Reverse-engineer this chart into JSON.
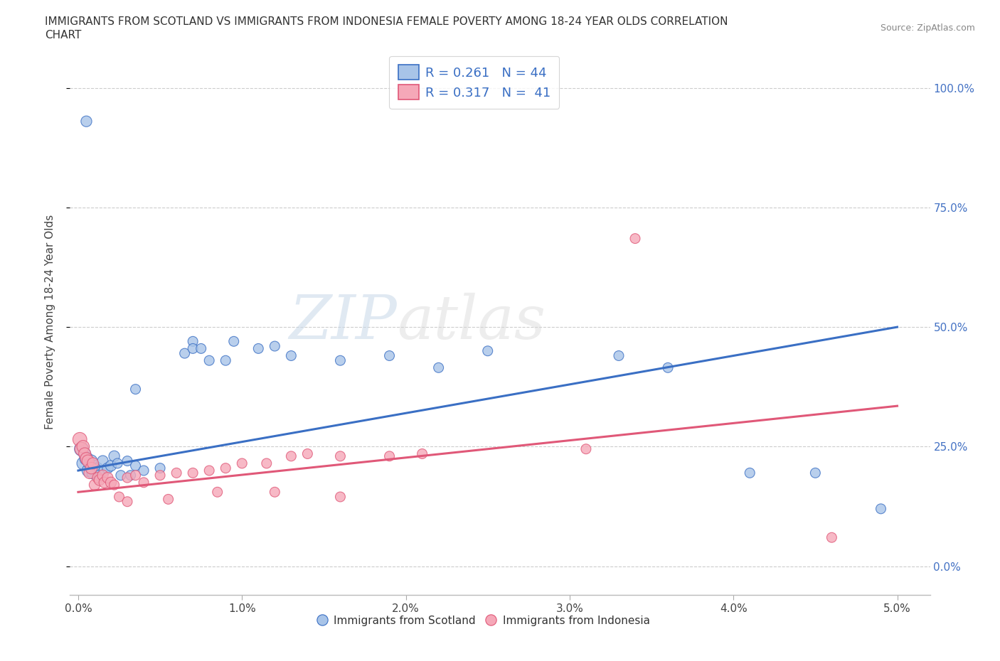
{
  "title_line1": "IMMIGRANTS FROM SCOTLAND VS IMMIGRANTS FROM INDONESIA FEMALE POVERTY AMONG 18-24 YEAR OLDS CORRELATION",
  "title_line2": "CHART",
  "source": "Source: ZipAtlas.com",
  "ylabel": "Female Poverty Among 18-24 Year Olds",
  "xlabel_ticks": [
    "0.0%",
    "1.0%",
    "2.0%",
    "3.0%",
    "4.0%",
    "5.0%"
  ],
  "ylabel_ticks": [
    "0.0%",
    "25.0%",
    "50.0%",
    "75.0%",
    "100.0%"
  ],
  "xlim": [
    -0.0005,
    0.052
  ],
  "ylim": [
    -0.06,
    1.08
  ],
  "scotland_R": 0.261,
  "scotland_N": 44,
  "indonesia_R": 0.317,
  "indonesia_N": 41,
  "scotland_color": "#a8c4e8",
  "indonesia_color": "#f5a8b8",
  "scotland_line_color": "#3a6fc4",
  "indonesia_line_color": "#e05878",
  "watermark_zip": "ZIP",
  "watermark_atlas": "atlas",
  "scotland_points": [
    [
      0.0002,
      0.245
    ],
    [
      0.0003,
      0.215
    ],
    [
      0.0004,
      0.235
    ],
    [
      0.0005,
      0.225
    ],
    [
      0.0006,
      0.2
    ],
    [
      0.0007,
      0.215
    ],
    [
      0.0008,
      0.22
    ],
    [
      0.0009,
      0.195
    ],
    [
      0.001,
      0.21
    ],
    [
      0.0012,
      0.205
    ],
    [
      0.0013,
      0.19
    ],
    [
      0.0015,
      0.22
    ],
    [
      0.0016,
      0.2
    ],
    [
      0.0018,
      0.205
    ],
    [
      0.002,
      0.21
    ],
    [
      0.0022,
      0.23
    ],
    [
      0.0024,
      0.215
    ],
    [
      0.0026,
      0.19
    ],
    [
      0.003,
      0.22
    ],
    [
      0.0032,
      0.19
    ],
    [
      0.0035,
      0.21
    ],
    [
      0.004,
      0.2
    ],
    [
      0.005,
      0.205
    ],
    [
      0.0065,
      0.445
    ],
    [
      0.007,
      0.47
    ],
    [
      0.007,
      0.455
    ],
    [
      0.0075,
      0.455
    ],
    [
      0.008,
      0.43
    ],
    [
      0.009,
      0.43
    ],
    [
      0.0095,
      0.47
    ],
    [
      0.011,
      0.455
    ],
    [
      0.012,
      0.46
    ],
    [
      0.013,
      0.44
    ],
    [
      0.016,
      0.43
    ],
    [
      0.019,
      0.44
    ],
    [
      0.025,
      0.45
    ],
    [
      0.0035,
      0.37
    ],
    [
      0.022,
      0.415
    ],
    [
      0.033,
      0.44
    ],
    [
      0.036,
      0.415
    ],
    [
      0.041,
      0.195
    ],
    [
      0.0005,
      0.93
    ],
    [
      0.045,
      0.195
    ],
    [
      0.049,
      0.12
    ]
  ],
  "indonesia_points": [
    [
      0.0001,
      0.265
    ],
    [
      0.0002,
      0.245
    ],
    [
      0.0003,
      0.25
    ],
    [
      0.0004,
      0.235
    ],
    [
      0.0005,
      0.225
    ],
    [
      0.0006,
      0.22
    ],
    [
      0.0007,
      0.195
    ],
    [
      0.0008,
      0.205
    ],
    [
      0.0009,
      0.215
    ],
    [
      0.001,
      0.17
    ],
    [
      0.0012,
      0.185
    ],
    [
      0.0013,
      0.18
    ],
    [
      0.0015,
      0.19
    ],
    [
      0.0016,
      0.175
    ],
    [
      0.0018,
      0.185
    ],
    [
      0.002,
      0.175
    ],
    [
      0.0022,
      0.17
    ],
    [
      0.003,
      0.185
    ],
    [
      0.0035,
      0.19
    ],
    [
      0.004,
      0.175
    ],
    [
      0.005,
      0.19
    ],
    [
      0.006,
      0.195
    ],
    [
      0.007,
      0.195
    ],
    [
      0.008,
      0.2
    ],
    [
      0.009,
      0.205
    ],
    [
      0.01,
      0.215
    ],
    [
      0.0115,
      0.215
    ],
    [
      0.013,
      0.23
    ],
    [
      0.014,
      0.235
    ],
    [
      0.016,
      0.23
    ],
    [
      0.019,
      0.23
    ],
    [
      0.021,
      0.235
    ],
    [
      0.031,
      0.245
    ],
    [
      0.0025,
      0.145
    ],
    [
      0.003,
      0.135
    ],
    [
      0.0055,
      0.14
    ],
    [
      0.0085,
      0.155
    ],
    [
      0.012,
      0.155
    ],
    [
      0.016,
      0.145
    ],
    [
      0.034,
      0.685
    ],
    [
      0.046,
      0.06
    ]
  ],
  "scotland_point_sizes": [
    200,
    160,
    150,
    180,
    150,
    150,
    150,
    150,
    120,
    120,
    120,
    120,
    120,
    120,
    120,
    120,
    100,
    100,
    100,
    100,
    100,
    100,
    100,
    100,
    100,
    100,
    100,
    100,
    100,
    100,
    100,
    100,
    100,
    100,
    100,
    100,
    100,
    100,
    100,
    100,
    100,
    120,
    100,
    100
  ],
  "indonesia_point_sizes": [
    200,
    180,
    160,
    150,
    150,
    150,
    140,
    140,
    130,
    120,
    120,
    120,
    120,
    120,
    120,
    120,
    100,
    100,
    100,
    100,
    100,
    100,
    100,
    100,
    100,
    100,
    100,
    100,
    100,
    100,
    100,
    100,
    100,
    100,
    100,
    100,
    100,
    100,
    100,
    100,
    100
  ]
}
